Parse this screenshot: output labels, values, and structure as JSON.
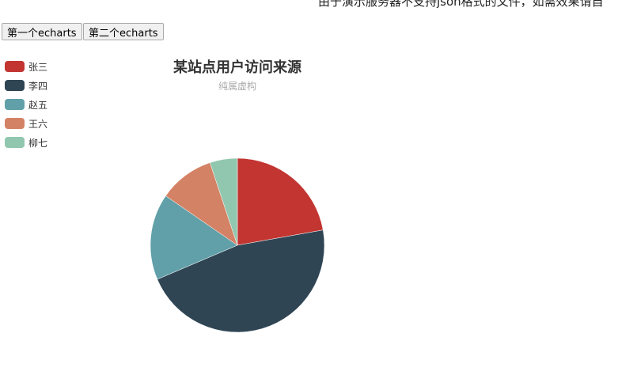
{
  "notice": "由于演示服务器不支持json格式的文件，如需效果请自",
  "buttons": [
    "第一个echarts",
    "第二个echarts"
  ],
  "chart_data": {
    "type": "pie",
    "title": "某站点用户访问来源",
    "subtitle": "纯属虚构",
    "legend_position": "top-left",
    "categories": [
      "张三",
      "李四",
      "赵五",
      "王六",
      "柳七"
    ],
    "values": [
      22.2,
      46.4,
      16.0,
      10.3,
      5.1
    ],
    "colors": [
      "#c23531",
      "#2f4554",
      "#61a0a8",
      "#d48265",
      "#91c7ae"
    ]
  }
}
